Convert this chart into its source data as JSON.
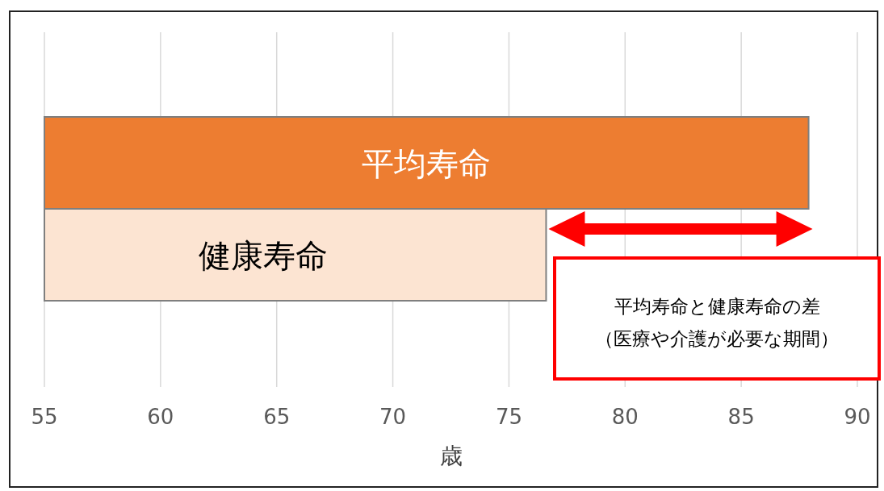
{
  "chart_data": {
    "type": "bar",
    "orientation": "horizontal",
    "xlabel": "歳",
    "categories": [
      "平均寿命",
      "健康寿命"
    ],
    "values": [
      87.9,
      76.6
    ],
    "colors": [
      "#ed7d31",
      "#fce4d2"
    ],
    "xlim": [
      55,
      90
    ],
    "xticks": [
      55,
      60,
      65,
      70,
      75,
      80,
      85,
      90
    ],
    "grid": "x",
    "annotations": [
      "平均寿命と健康寿命の差",
      "（医療や介護が必要な期間）"
    ]
  }
}
